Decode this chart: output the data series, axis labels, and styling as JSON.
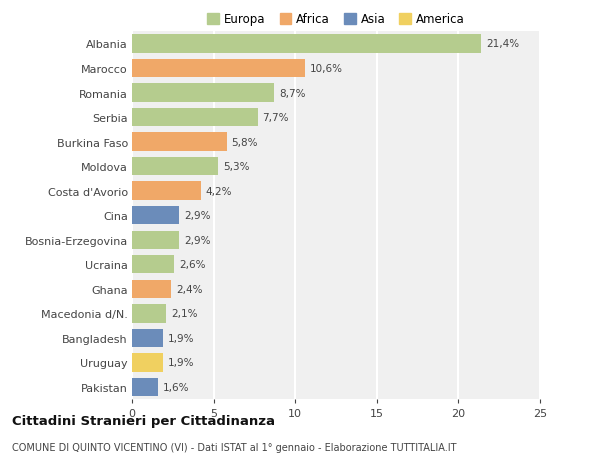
{
  "countries": [
    "Albania",
    "Marocco",
    "Romania",
    "Serbia",
    "Burkina Faso",
    "Moldova",
    "Costa d'Avorio",
    "Cina",
    "Bosnia-Erzegovina",
    "Ucraina",
    "Ghana",
    "Macedonia d/N.",
    "Bangladesh",
    "Uruguay",
    "Pakistan"
  ],
  "values": [
    21.4,
    10.6,
    8.7,
    7.7,
    5.8,
    5.3,
    4.2,
    2.9,
    2.9,
    2.6,
    2.4,
    2.1,
    1.9,
    1.9,
    1.6
  ],
  "labels": [
    "21,4%",
    "10,6%",
    "8,7%",
    "7,7%",
    "5,8%",
    "5,3%",
    "4,2%",
    "2,9%",
    "2,9%",
    "2,6%",
    "2,4%",
    "2,1%",
    "1,9%",
    "1,9%",
    "1,6%"
  ],
  "continents": [
    "Europa",
    "Africa",
    "Europa",
    "Europa",
    "Africa",
    "Europa",
    "Africa",
    "Asia",
    "Europa",
    "Europa",
    "Africa",
    "Europa",
    "Asia",
    "America",
    "Asia"
  ],
  "colors": {
    "Europa": "#b5cc8e",
    "Africa": "#f0a868",
    "Asia": "#6b8cba",
    "America": "#f0d060"
  },
  "xlim": [
    0,
    25
  ],
  "xticks": [
    0,
    5,
    10,
    15,
    20,
    25
  ],
  "title": "Cittadini Stranieri per Cittadinanza",
  "subtitle": "COMUNE DI QUINTO VICENTINO (VI) - Dati ISTAT al 1° gennaio - Elaborazione TUTTITALIA.IT",
  "bg_color": "#ffffff",
  "plot_bg_color": "#f0f0f0",
  "grid_color": "#ffffff"
}
